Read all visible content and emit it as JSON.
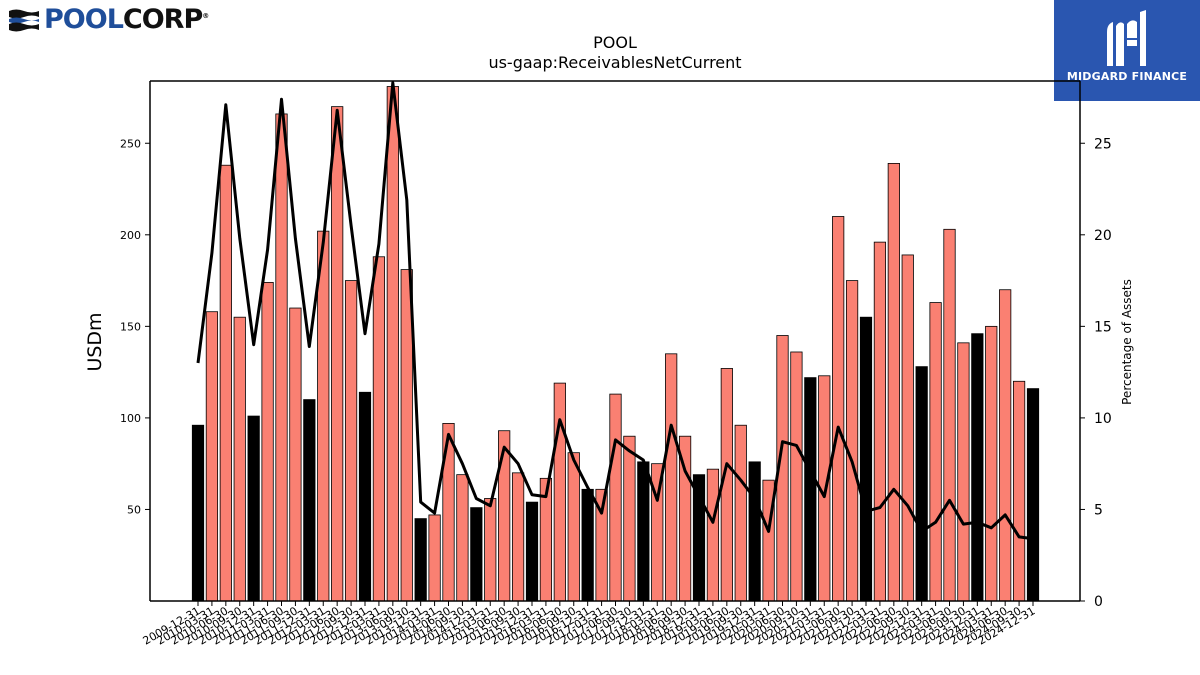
{
  "logos": {
    "left_text_a": "POOL",
    "left_text_b": "CORP",
    "right_text": "MIDGARD FINANCE"
  },
  "chart_data": {
    "type": "bar",
    "title": "POOL",
    "subtitle": "us-gaap:ReceivablesNetCurrent",
    "ylabel": "USDm",
    "y2label": "Percentage of Assets",
    "ylim": [
      0,
      284
    ],
    "y2lim": [
      0,
      28.4
    ],
    "yticks": [
      50,
      100,
      150,
      200,
      250
    ],
    "y2ticks": [
      0,
      5,
      10,
      15,
      20,
      25
    ],
    "grid": false,
    "colors": {
      "bar_year_end": "#000000",
      "bar_quarter": "#fa8072",
      "line": "#000000"
    },
    "categories": [
      "2009-12-31",
      "2010-03-31",
      "2010-06-30",
      "2010-09-30",
      "2010-12-31",
      "2011-03-31",
      "2011-06-30",
      "2011-09-30",
      "2011-12-31",
      "2012-03-31",
      "2012-06-30",
      "2012-09-30",
      "2012-12-31",
      "2013-03-31",
      "2013-06-30",
      "2013-09-30",
      "2013-12-31",
      "2014-03-31",
      "2014-06-30",
      "2014-09-30",
      "2014-12-31",
      "2015-03-31",
      "2015-06-30",
      "2015-09-30",
      "2015-12-31",
      "2016-03-31",
      "2016-06-30",
      "2016-09-30",
      "2016-12-31",
      "2017-03-31",
      "2017-06-30",
      "2017-09-30",
      "2017-12-31",
      "2018-03-31",
      "2018-06-30",
      "2018-09-30",
      "2018-12-31",
      "2019-03-31",
      "2019-06-30",
      "2019-09-30",
      "2019-12-31",
      "2020-03-31",
      "2020-06-30",
      "2020-09-30",
      "2020-12-31",
      "2021-03-31",
      "2021-06-30",
      "2021-09-30",
      "2021-12-31",
      "2022-03-31",
      "2022-06-30",
      "2022-09-30",
      "2022-12-31",
      "2023-03-31",
      "2023-06-30",
      "2023-09-30",
      "2023-12-31",
      "2024-03-31",
      "2024-06-30",
      "2024-09-30",
      "2024-12-31"
    ],
    "tick_labels": [
      "2009-12-31",
      "2010-03-31",
      "2010-06-30",
      "2010-09-30",
      "2010-12-31",
      "2011-03-31",
      "2011-06-30",
      "2011-09-30",
      "2011-12-31",
      "2012-03-31",
      "2012-06-30",
      "2012-09-30",
      "2012-12-31",
      "2013-03-31",
      "2013-06-30",
      "2013-09-30",
      "2013-12-31",
      "2014-03-31",
      "2014-06-30",
      "2014-09-30",
      "2014-12-31",
      "2015-03-31",
      "2015-06-30",
      "2015-09-30",
      "2015-12-31",
      "2016-03-31",
      "2016-06-30",
      "2016-09-30",
      "2016-12-31",
      "2017-03-31",
      "2017-06-30",
      "2017-09-30",
      "2017-12-31",
      "2018-03-31",
      "2018-06-30",
      "2018-09-30",
      "2018-12-31",
      "2019-03-31",
      "2019-06-30",
      "2019-09-30",
      "2019-12-31",
      "2020-03-31",
      "2020-06-30",
      "2020-09-30",
      "2020-12-31",
      "2021-03-31",
      "2021-06-30",
      "2021-09-30",
      "2021-12-31",
      "2022-03-31",
      "2022-06-30",
      "2022-09-30",
      "2022-12-31",
      "2023-03-31",
      "2023-06-30",
      "2023-09-30",
      "2023-12-31",
      "2024-03-31",
      "2024-06-30",
      "2024-09-30",
      "2024-12-31"
    ],
    "series": [
      {
        "type": "bar",
        "axis": "left",
        "values": [
          96,
          158,
          238,
          155,
          101,
          174,
          266,
          160,
          110,
          202,
          270,
          175,
          114,
          188,
          281,
          181,
          45,
          47,
          97,
          69,
          51,
          56,
          93,
          70,
          54,
          67,
          119,
          81,
          61,
          61,
          113,
          90,
          76,
          75,
          135,
          90,
          69,
          72,
          127,
          96,
          76,
          66,
          145,
          136,
          122,
          123,
          210,
          175,
          155,
          196,
          239,
          189,
          128,
          163,
          203,
          141,
          146,
          150,
          170,
          120,
          116
        ]
      },
      {
        "type": "line",
        "axis": "right",
        "values": [
          13.0,
          19.0,
          27.1,
          19.8,
          14.0,
          19.2,
          27.4,
          19.8,
          13.9,
          19.6,
          26.8,
          20.5,
          14.6,
          19.5,
          28.3,
          21.9,
          5.4,
          4.8,
          9.1,
          7.5,
          5.6,
          5.2,
          8.4,
          7.5,
          5.8,
          5.7,
          9.9,
          7.7,
          6.2,
          4.8,
          8.8,
          8.2,
          7.7,
          5.5,
          9.6,
          7.1,
          5.7,
          4.3,
          7.5,
          6.6,
          5.6,
          3.8,
          8.7,
          8.5,
          7.1,
          5.7,
          9.5,
          7.6,
          4.9,
          5.1,
          6.1,
          5.2,
          3.8,
          4.3,
          5.5,
          4.2,
          4.3,
          4.0,
          4.7,
          3.5,
          3.4
        ]
      }
    ]
  }
}
